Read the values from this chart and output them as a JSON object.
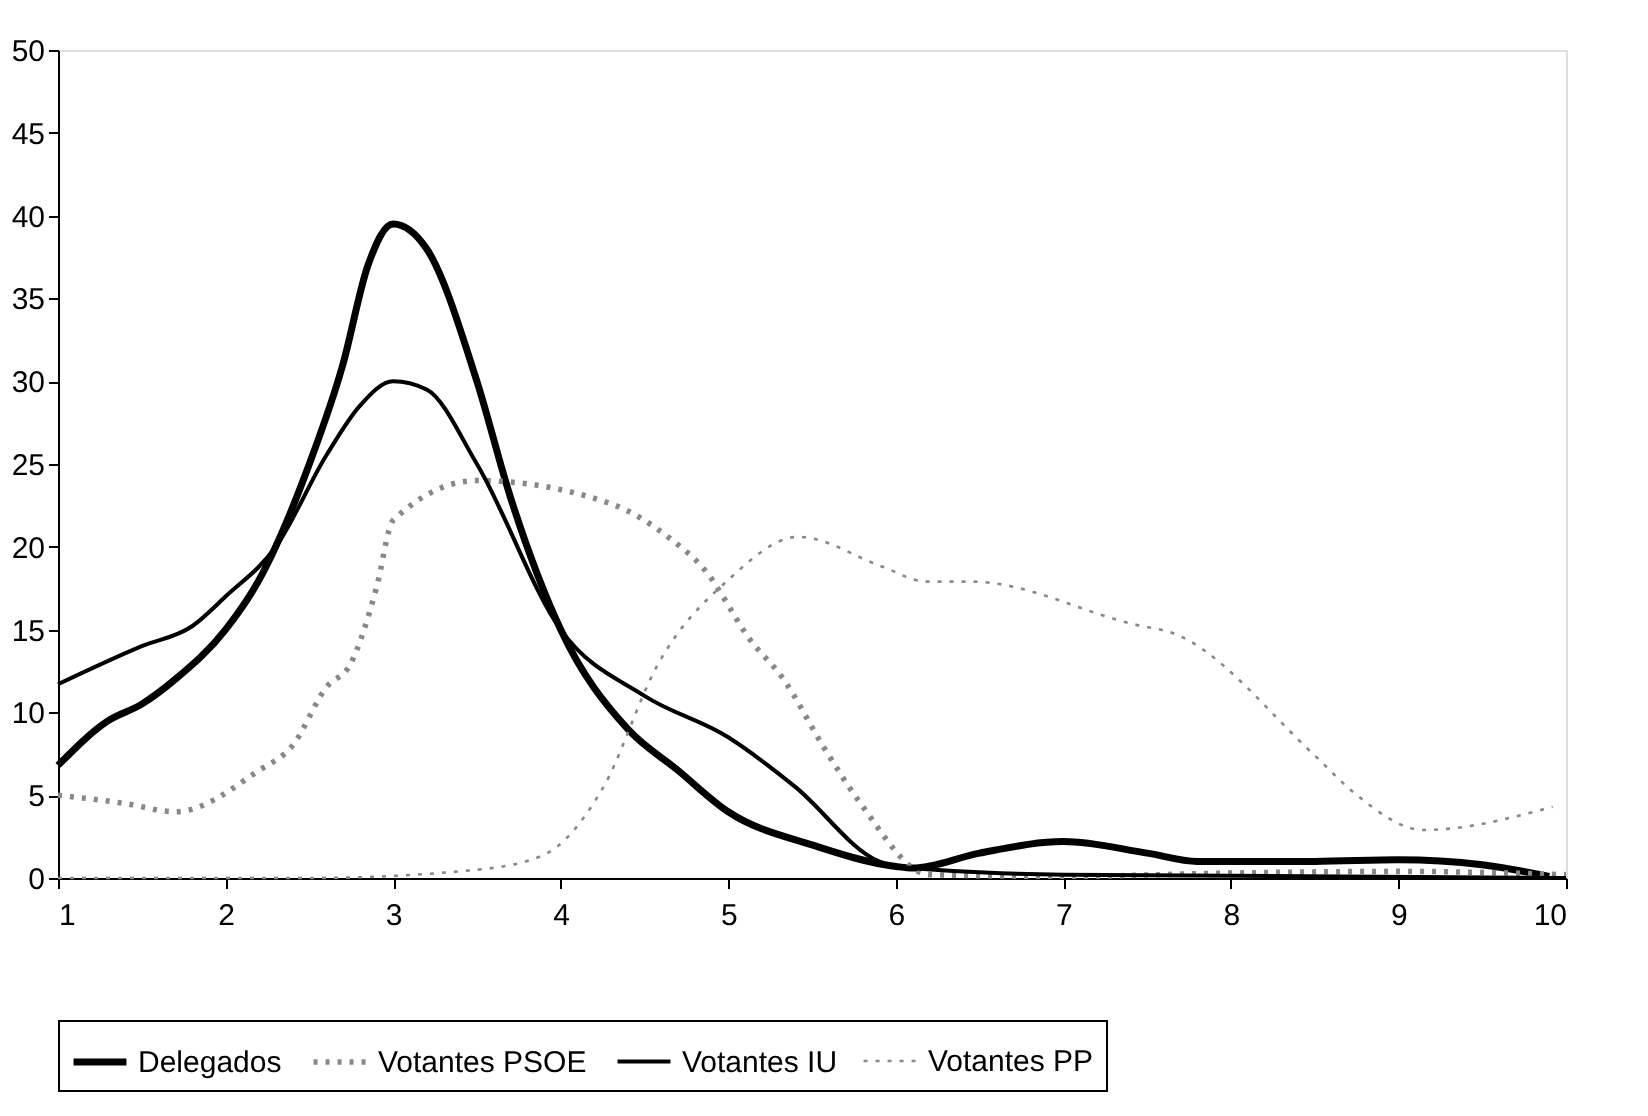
{
  "chart_data": {
    "type": "line",
    "xlim": [
      1,
      10
    ],
    "xticks": [
      1,
      2,
      3,
      4,
      5,
      6,
      7,
      8,
      9,
      10
    ],
    "ylim": [
      0,
      50
    ],
    "yticks": [
      0,
      5,
      10,
      15,
      20,
      25,
      30,
      35,
      40,
      45,
      50
    ],
    "grid": false,
    "legend": "bottom",
    "marker": "none",
    "series": [
      {
        "name": "Delegados",
        "color": "#000000",
        "line_style": "solid",
        "x": [
          1,
          1.3,
          1.5,
          1.7,
          2,
          2.2,
          2.5,
          2.7,
          2.85,
          3,
          3.2,
          3.5,
          3.7,
          4,
          4.4,
          4.7,
          5,
          5.5,
          6,
          6.1,
          6.5,
          7,
          7.5,
          7.8,
          8.5,
          9,
          9.5,
          9.9
        ],
        "values": [
          6.8,
          9.5,
          10.5,
          12,
          15,
          18,
          25,
          31,
          37,
          39.5,
          38,
          30,
          23,
          15,
          9,
          6.5,
          4,
          2,
          0.7,
          0.6,
          1.5,
          2.2,
          1.5,
          1,
          1,
          1.1,
          0.8,
          0.1
        ]
      },
      {
        "name": "Votantes PSOE",
        "color": "#888888",
        "line_style": "dotted",
        "x": [
          1,
          1.4,
          1.7,
          2.2,
          2.4,
          2.6,
          2.75,
          2.9,
          3,
          3.5,
          4.3,
          4.64,
          4.86,
          5.13,
          5.33,
          5.57,
          5.79,
          6.2,
          7,
          8,
          9,
          10
        ],
        "values": [
          5,
          4.5,
          4,
          6.5,
          8,
          11.5,
          13,
          17.5,
          21.6,
          24,
          22.6,
          20.6,
          18.6,
          14.4,
          12,
          7.9,
          4.5,
          0.2,
          0.1,
          0.3,
          0.4,
          0.2
        ]
      },
      {
        "name": "Votantes IU",
        "color": "#000000",
        "line_style": "solid",
        "x": [
          1,
          1.5,
          1.8,
          2,
          2.3,
          2.6,
          2.8,
          3,
          3.2,
          3.5,
          4,
          4.5,
          5,
          5.4,
          5.9,
          6,
          7,
          10
        ],
        "values": [
          11.7,
          14,
          15.2,
          17,
          20,
          25.5,
          28.5,
          30,
          29.5,
          25,
          15,
          11,
          8.5,
          5.5,
          1,
          0.7,
          0.2,
          0
        ]
      },
      {
        "name": "Votantes PP",
        "color": "#888888",
        "line_style": "dotted",
        "x": [
          1,
          2,
          2.5,
          3.5,
          3.9,
          4.25,
          4.58,
          5,
          5.42,
          5.92,
          6.18,
          6.45,
          7.43,
          7.65,
          8.5,
          8.74,
          9.15,
          9.92
        ],
        "values": [
          0,
          0,
          0,
          0.5,
          1.4,
          5.4,
          12.9,
          18,
          20.6,
          18.8,
          17.9,
          17.9,
          15.3,
          14.8,
          7.4,
          5.1,
          2.9,
          4.3
        ]
      }
    ]
  }
}
